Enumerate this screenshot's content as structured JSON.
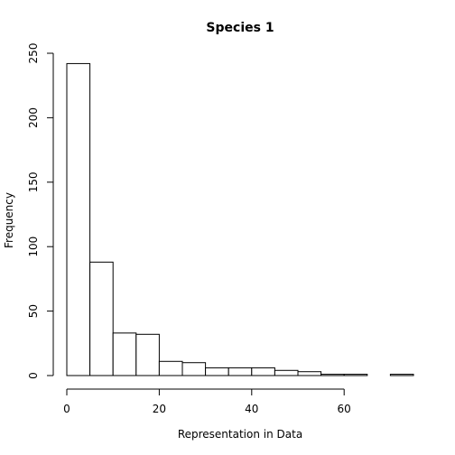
{
  "chart_data": {
    "type": "bar",
    "title": "Species 1",
    "xlabel": "Representation in Data",
    "ylabel": "Frequency",
    "bin_width": 5,
    "bin_starts": [
      0,
      5,
      10,
      15,
      20,
      25,
      30,
      35,
      40,
      45,
      50,
      55,
      60,
      65,
      70
    ],
    "values": [
      242,
      88,
      33,
      32,
      11,
      10,
      6,
      6,
      6,
      4,
      3,
      1,
      1,
      0,
      1
    ],
    "xlim": [
      0,
      75
    ],
    "ylim": [
      0,
      250
    ],
    "x_ticks": [
      "0",
      "20",
      "40",
      "60"
    ],
    "y_ticks": [
      "0",
      "50",
      "100",
      "150",
      "200",
      "250"
    ],
    "grid": false,
    "legend": "none"
  }
}
